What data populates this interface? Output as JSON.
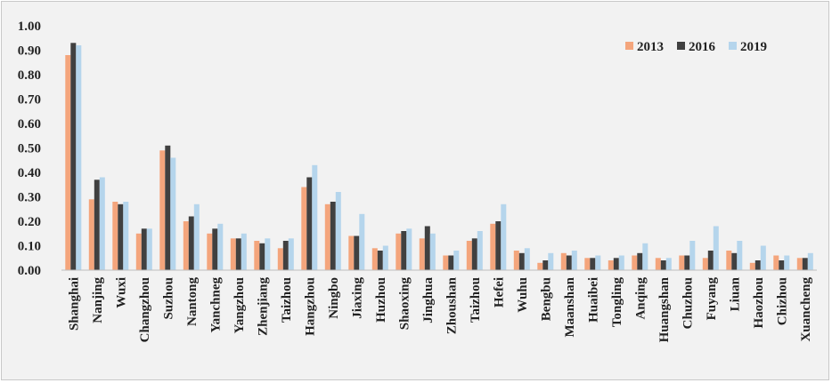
{
  "chart_data": {
    "type": "bar",
    "title": "",
    "xlabel": "",
    "ylabel": "",
    "ylim": [
      0,
      1
    ],
    "yticks": [
      "0.00",
      "0.10",
      "0.20",
      "0.30",
      "0.40",
      "0.50",
      "0.60",
      "0.70",
      "0.80",
      "0.90",
      "1.00"
    ],
    "grid": false,
    "legend_position": "top-right",
    "categories": [
      "Shanghai",
      "Nanjing",
      "Wuxi",
      "Changzhou",
      "Suzhou",
      "Nantong",
      "Yanchneg",
      "Yangzhou",
      "Zhenjiang",
      "Taizhou",
      "Hangzhou",
      "Ningbo",
      "Jiaxing",
      "Huzhou",
      "Shaoxing",
      "Jinghua",
      "Zhoushan",
      "Taizhou",
      "Hefei",
      "Wuhu",
      "Bengbu",
      "Maanshan",
      "Huaibei",
      "Tongling",
      "Anqing",
      "Huangshan",
      "Chuzhou",
      "Fuyang",
      "Liuan",
      "Haozhou",
      "Chizhou",
      "Xuancheng"
    ],
    "series": [
      {
        "name": "2013",
        "color": "#f4a57c",
        "values": [
          0.88,
          0.29,
          0.28,
          0.15,
          0.49,
          0.2,
          0.15,
          0.13,
          0.12,
          0.09,
          0.34,
          0.27,
          0.14,
          0.09,
          0.15,
          0.13,
          0.06,
          0.12,
          0.19,
          0.08,
          0.03,
          0.07,
          0.05,
          0.04,
          0.06,
          0.05,
          0.06,
          0.05,
          0.08,
          0.03,
          0.06,
          0.05
        ]
      },
      {
        "name": "2016",
        "color": "#404040",
        "values": [
          0.93,
          0.37,
          0.27,
          0.17,
          0.51,
          0.22,
          0.17,
          0.13,
          0.11,
          0.12,
          0.38,
          0.28,
          0.14,
          0.08,
          0.16,
          0.18,
          0.06,
          0.13,
          0.2,
          0.07,
          0.04,
          0.06,
          0.05,
          0.05,
          0.07,
          0.04,
          0.06,
          0.08,
          0.07,
          0.04,
          0.04,
          0.05
        ]
      },
      {
        "name": "2019",
        "color": "#b5d5ec",
        "values": [
          0.92,
          0.38,
          0.28,
          0.17,
          0.46,
          0.27,
          0.19,
          0.15,
          0.13,
          0.13,
          0.43,
          0.32,
          0.23,
          0.1,
          0.17,
          0.15,
          0.08,
          0.16,
          0.27,
          0.09,
          0.07,
          0.08,
          0.06,
          0.06,
          0.11,
          0.05,
          0.12,
          0.18,
          0.12,
          0.1,
          0.06,
          0.07
        ]
      }
    ]
  }
}
